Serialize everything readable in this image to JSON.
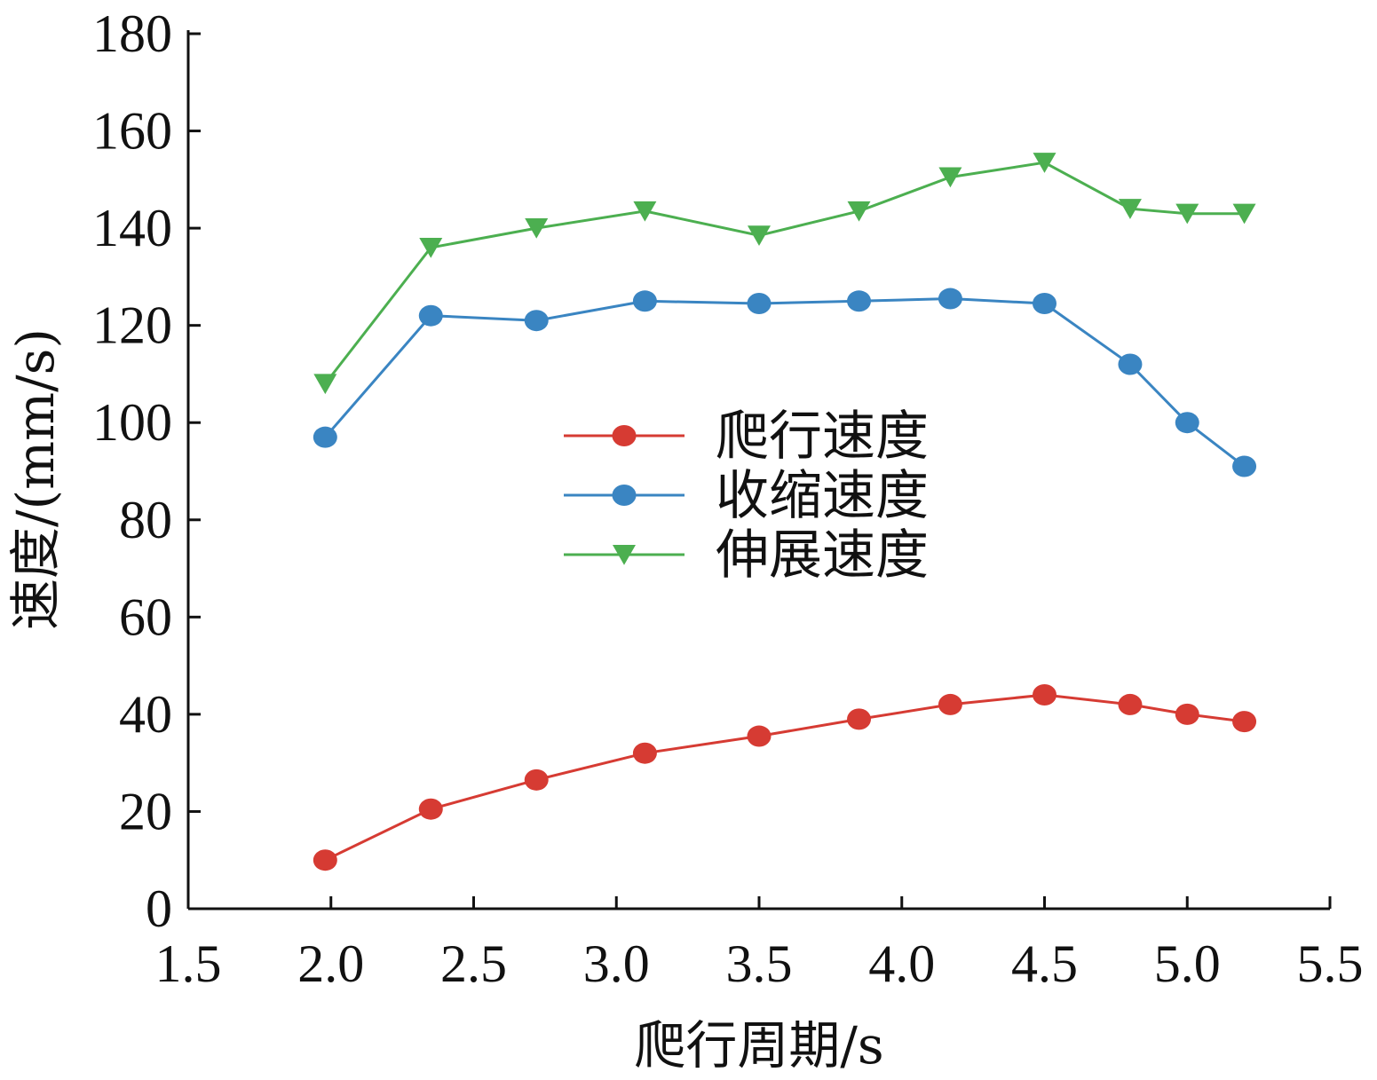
{
  "chart_data": {
    "type": "line",
    "title": "",
    "xlabel": "爬行周期/s",
    "ylabel": "速度/(mm/s)",
    "xlim": [
      1.5,
      5.5
    ],
    "ylim": [
      0,
      180
    ],
    "xticks": [
      "1.5",
      "2.0",
      "2.5",
      "3.0",
      "3.5",
      "4.0",
      "4.5",
      "5.0",
      "5.5"
    ],
    "yticks": [
      "0",
      "20",
      "40",
      "60",
      "80",
      "100",
      "120",
      "140",
      "160",
      "180"
    ],
    "grid": false,
    "legend_position": "center",
    "x": [
      1.98,
      2.35,
      2.72,
      3.1,
      3.5,
      3.85,
      4.17,
      4.5,
      4.8,
      5.0,
      5.2
    ],
    "series": [
      {
        "name": "爬行速度",
        "color": "#d63b33",
        "marker": "circle",
        "values": [
          10,
          20.5,
          26.5,
          32,
          35.5,
          39,
          42,
          44,
          42,
          40,
          38.5
        ]
      },
      {
        "name": "收缩速度",
        "color": "#3a85c2",
        "marker": "circle",
        "values": [
          97,
          122,
          121,
          125,
          124.5,
          125,
          125.5,
          124.5,
          112,
          100,
          91
        ]
      },
      {
        "name": "伸展速度",
        "color": "#4caf50",
        "marker": "triangle-down",
        "values": [
          108,
          136,
          140,
          143.5,
          138.5,
          143.5,
          150.5,
          153.5,
          144,
          143,
          143
        ]
      }
    ]
  }
}
